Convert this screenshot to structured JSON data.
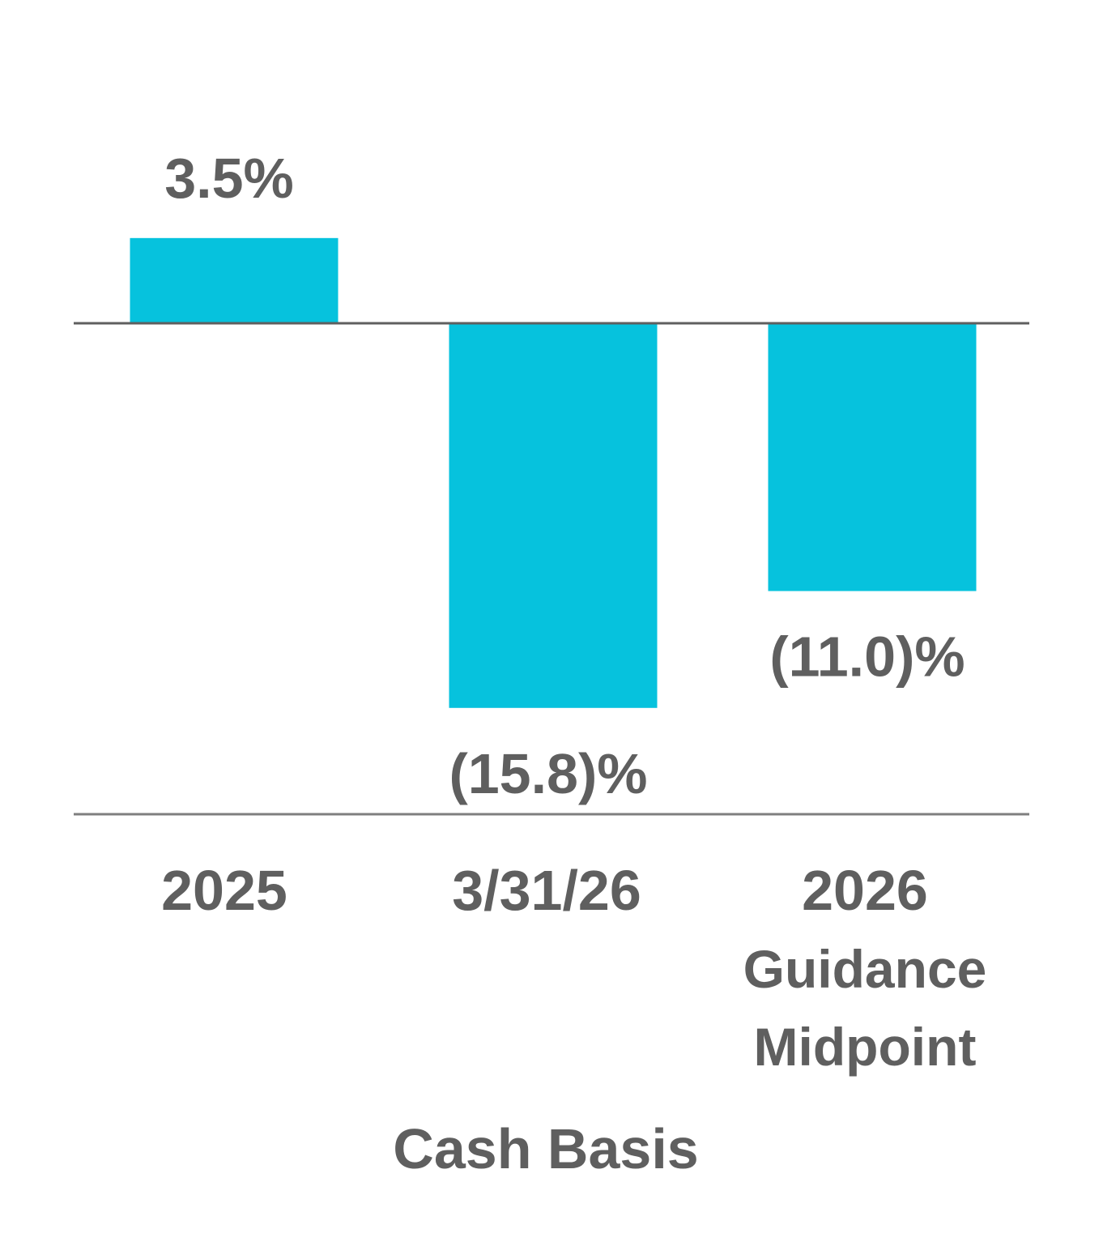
{
  "chart_data": {
    "type": "bar",
    "categories": [
      [
        "2025"
      ],
      [
        "3/31/26"
      ],
      [
        "2026",
        "Guidance",
        "Midpoint"
      ]
    ],
    "values": [
      3.5,
      -15.8,
      -11.0
    ],
    "data_labels": [
      "3.5%",
      "(15.8)%",
      "(11.0)%"
    ],
    "xlabel": "Cash Basis",
    "ylim": [
      -20,
      8.5
    ],
    "grid": false,
    "legend": "none"
  },
  "colors": {
    "bar": "#06c2dd",
    "text": "#5f5f5f",
    "zero_line": "#5f5f5f",
    "axis_line": "#7f7f7f"
  }
}
